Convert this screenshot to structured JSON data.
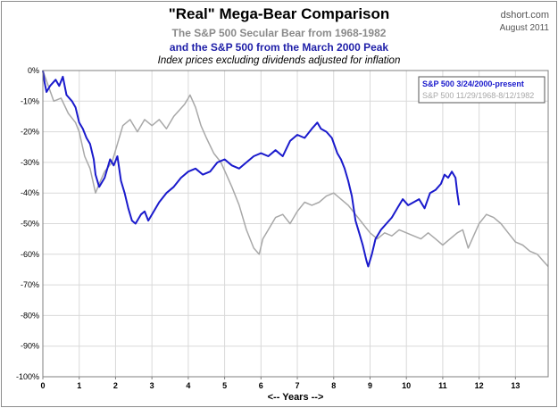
{
  "header": {
    "title": "\"Real\" Mega-Bear Comparison",
    "subtitle_1": "The S&P 500 Secular Bear from 1968-1982",
    "subtitle_2": "and the S&P 500 from the March 2000 Peak",
    "subtitle_3": "Index prices excluding dividends adjusted for inflation",
    "source": "dshort.com",
    "date": "August 2011"
  },
  "colors": {
    "series_2000": "#1a1acc",
    "series_1968": "#a8a8a8",
    "grid": "#d9d9d9",
    "axis_text": "#000000"
  },
  "chart_data": {
    "type": "line",
    "title": "\"Real\" Mega-Bear Comparison",
    "xlabel": "<-- Years -->",
    "ylabel": "",
    "xlim": [
      0,
      13.9
    ],
    "ylim": [
      -100,
      0
    ],
    "x_ticks": [
      0,
      1,
      2,
      3,
      4,
      5,
      6,
      7,
      8,
      9,
      10,
      11,
      12,
      13
    ],
    "y_ticks": [
      0,
      -10,
      -20,
      -30,
      -40,
      -50,
      -60,
      -70,
      -80,
      -90,
      -100
    ],
    "y_tick_suffix": "%",
    "grid": true,
    "legend_position": "top-right",
    "series": [
      {
        "name": "S&P 500  11/29/1968-8/12/1982",
        "color": "#a8a8a8",
        "x": [
          0,
          0.15,
          0.3,
          0.5,
          0.7,
          0.9,
          1.0,
          1.15,
          1.3,
          1.45,
          1.55,
          1.7,
          1.9,
          2.05,
          2.2,
          2.4,
          2.6,
          2.8,
          3.0,
          3.2,
          3.4,
          3.6,
          3.75,
          3.9,
          4.0,
          4.05,
          4.2,
          4.35,
          4.5,
          4.7,
          4.9,
          5.05,
          5.2,
          5.4,
          5.6,
          5.8,
          5.95,
          6.05,
          6.2,
          6.4,
          6.6,
          6.8,
          7.0,
          7.2,
          7.4,
          7.6,
          7.8,
          8.0,
          8.2,
          8.4,
          8.6,
          8.8,
          9.0,
          9.2,
          9.4,
          9.6,
          9.8,
          10.0,
          10.2,
          10.4,
          10.6,
          10.8,
          11.0,
          11.2,
          11.4,
          11.55,
          11.7,
          11.85,
          12.0,
          12.2,
          12.4,
          12.6,
          12.8,
          13.0,
          13.2,
          13.4,
          13.6,
          13.75,
          13.9
        ],
        "values": [
          0,
          -5,
          -10,
          -9,
          -14,
          -17,
          -20,
          -28,
          -32,
          -40,
          -37,
          -33,
          -30,
          -24,
          -18,
          -16,
          -20,
          -16,
          -18,
          -16,
          -19,
          -15,
          -13,
          -11,
          -9,
          -8,
          -12,
          -18,
          -22,
          -27,
          -30,
          -34,
          -38,
          -44,
          -52,
          -58,
          -60,
          -55,
          -52,
          -48,
          -47,
          -50,
          -46,
          -43,
          -44,
          -43,
          -41,
          -40,
          -42,
          -44,
          -47,
          -50,
          -53,
          -55,
          -53,
          -54,
          -52,
          -53,
          -54,
          -55,
          -53,
          -55,
          -57,
          -55,
          -53,
          -52,
          -58,
          -54,
          -50,
          -47,
          -48,
          -50,
          -53,
          -56,
          -57,
          -59,
          -60,
          -62,
          -64
        ]
      },
      {
        "name": "S&P 500  3/24/2000-present",
        "color": "#1a1acc",
        "x": [
          0,
          0.05,
          0.1,
          0.2,
          0.35,
          0.45,
          0.55,
          0.65,
          0.8,
          0.9,
          1.0,
          1.1,
          1.2,
          1.3,
          1.4,
          1.45,
          1.55,
          1.7,
          1.85,
          1.95,
          2.05,
          2.15,
          2.25,
          2.35,
          2.45,
          2.55,
          2.7,
          2.8,
          2.9,
          3.0,
          3.2,
          3.4,
          3.6,
          3.8,
          4.0,
          4.2,
          4.4,
          4.6,
          4.8,
          5.0,
          5.2,
          5.4,
          5.6,
          5.8,
          6.0,
          6.2,
          6.4,
          6.6,
          6.8,
          7.0,
          7.2,
          7.4,
          7.55,
          7.65,
          7.8,
          7.95,
          8.1,
          8.2,
          8.3,
          8.4,
          8.5,
          8.6,
          8.7,
          8.8,
          8.9,
          8.95,
          9.05,
          9.15,
          9.3,
          9.45,
          9.6,
          9.75,
          9.9,
          10.05,
          10.2,
          10.35,
          10.5,
          10.65,
          10.8,
          10.95,
          11.05,
          11.15,
          11.25,
          11.35,
          11.4,
          11.45
        ],
        "values": [
          0,
          -4,
          -7,
          -5,
          -3,
          -5,
          -2,
          -8,
          -10,
          -12,
          -17,
          -19,
          -22,
          -24,
          -29,
          -34,
          -38,
          -35,
          -29,
          -31,
          -28,
          -36,
          -40,
          -45,
          -49,
          -50,
          -47,
          -46,
          -49,
          -47,
          -43,
          -40,
          -38,
          -35,
          -33,
          -32,
          -34,
          -33,
          -30,
          -29,
          -31,
          -32,
          -30,
          -28,
          -27,
          -28,
          -26,
          -28,
          -23,
          -21,
          -22,
          -19,
          -17,
          -19,
          -20,
          -22,
          -27,
          -29,
          -32,
          -36,
          -41,
          -49,
          -53,
          -57,
          -62,
          -64,
          -60,
          -55,
          -52,
          -50,
          -48,
          -45,
          -42,
          -44,
          -43,
          -42,
          -45,
          -40,
          -39,
          -37,
          -34,
          -35,
          -33,
          -35,
          -40,
          -44
        ]
      }
    ]
  }
}
